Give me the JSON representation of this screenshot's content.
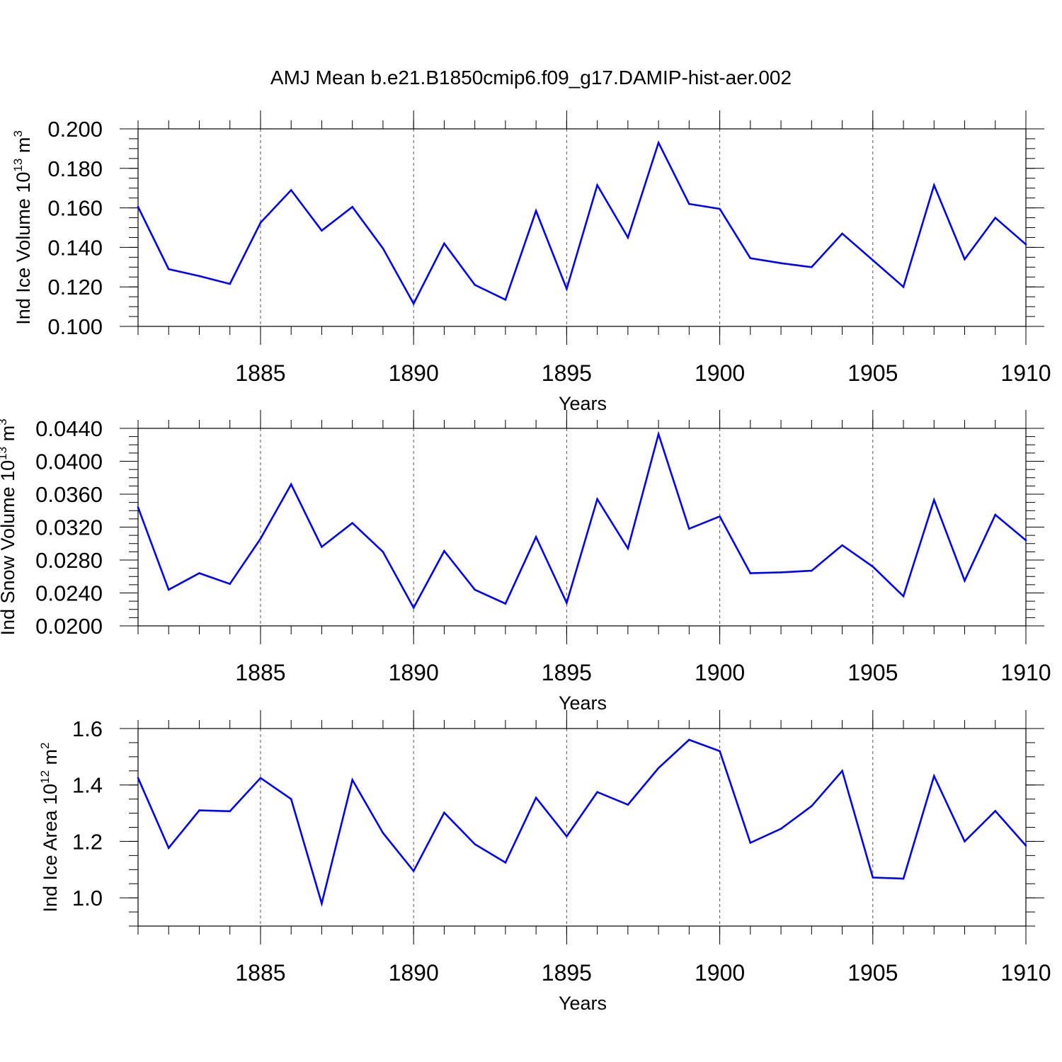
{
  "figure": {
    "title": "AMJ Mean b.e21.B1850cmip6.f09_g17.DAMIP-hist-aer.002",
    "line_color": "#0000ff",
    "grid_color": "#555555"
  },
  "chart_data": [
    {
      "type": "line",
      "ylabel": "Ind Ice Volume",
      "unit_base": "10",
      "unit_exp": "13",
      "unit_name": "m",
      "unit_power": "3",
      "xlabel": "Years",
      "xlim": [
        1881,
        1910
      ],
      "ylim": [
        0.1,
        0.2
      ],
      "xticks": [
        1885,
        1890,
        1895,
        1900,
        1905,
        1910
      ],
      "xtick_labels": [
        "1885",
        "1890",
        "1895",
        "1900",
        "1905",
        "1910"
      ],
      "yticks": [
        0.1,
        0.12,
        0.14,
        0.16,
        0.18,
        0.2
      ],
      "ytick_labels": [
        "0.100",
        "0.120",
        "0.140",
        "0.160",
        "0.180",
        "0.200"
      ],
      "yminor_step": 0.005,
      "x": [
        1881,
        1882,
        1883,
        1884,
        1885,
        1886,
        1887,
        1888,
        1889,
        1890,
        1891,
        1892,
        1893,
        1894,
        1895,
        1896,
        1897,
        1898,
        1899,
        1900,
        1901,
        1902,
        1903,
        1904,
        1905,
        1906,
        1907,
        1908,
        1909,
        1910
      ],
      "values": [
        0.1605,
        0.129,
        0.1255,
        0.1215,
        0.1525,
        0.169,
        0.1485,
        0.1605,
        0.1395,
        0.1115,
        0.142,
        0.121,
        0.1135,
        0.1585,
        0.119,
        0.1715,
        0.145,
        0.193,
        0.162,
        0.1595,
        0.1345,
        0.132,
        0.13,
        0.147,
        0.1335,
        0.12,
        0.1715,
        0.134,
        0.155,
        0.1415
      ]
    },
    {
      "type": "line",
      "ylabel": "Ind Snow Volume",
      "unit_base": "10",
      "unit_exp": "13",
      "unit_name": "m",
      "unit_power": "3",
      "xlabel": "Years",
      "xlim": [
        1881,
        1910
      ],
      "ylim": [
        0.02,
        0.044
      ],
      "xticks": [
        1885,
        1890,
        1895,
        1900,
        1905,
        1910
      ],
      "xtick_labels": [
        "1885",
        "1890",
        "1895",
        "1900",
        "1905",
        "1910"
      ],
      "yticks": [
        0.02,
        0.024,
        0.028,
        0.032,
        0.036,
        0.04,
        0.044
      ],
      "ytick_labels": [
        "0.0200",
        "0.0240",
        "0.0280",
        "0.0320",
        "0.0360",
        "0.0400",
        "0.0440"
      ],
      "yminor_step": 0.001,
      "x": [
        1881,
        1882,
        1883,
        1884,
        1885,
        1886,
        1887,
        1888,
        1889,
        1890,
        1891,
        1892,
        1893,
        1894,
        1895,
        1896,
        1897,
        1898,
        1899,
        1900,
        1901,
        1902,
        1903,
        1904,
        1905,
        1906,
        1907,
        1908,
        1909,
        1910
      ],
      "values": [
        0.0344,
        0.0244,
        0.0264,
        0.0251,
        0.0306,
        0.0372,
        0.0296,
        0.0325,
        0.029,
        0.0222,
        0.0291,
        0.0244,
        0.0227,
        0.0308,
        0.0228,
        0.0354,
        0.0294,
        0.0433,
        0.0318,
        0.0333,
        0.0264,
        0.0265,
        0.0267,
        0.0298,
        0.0272,
        0.0236,
        0.0353,
        0.0255,
        0.0335,
        0.0304
      ]
    },
    {
      "type": "line",
      "ylabel": "Ind Ice Area",
      "unit_base": "10",
      "unit_exp": "12",
      "unit_name": "m",
      "unit_power": "2",
      "xlabel": "Years",
      "xlim": [
        1881,
        1910
      ],
      "ylim": [
        0.9,
        1.6
      ],
      "xticks": [
        1885,
        1890,
        1895,
        1900,
        1905,
        1910
      ],
      "xtick_labels": [
        "1885",
        "1890",
        "1895",
        "1900",
        "1905",
        "1910"
      ],
      "yticks": [
        1.0,
        1.2,
        1.4,
        1.6
      ],
      "ytick_labels": [
        "1.0",
        "1.2",
        "1.4",
        "1.6"
      ],
      "yminor_step": 0.05,
      "x": [
        1881,
        1882,
        1883,
        1884,
        1885,
        1886,
        1887,
        1888,
        1889,
        1890,
        1891,
        1892,
        1893,
        1894,
        1895,
        1896,
        1897,
        1898,
        1899,
        1900,
        1901,
        1902,
        1903,
        1904,
        1905,
        1906,
        1907,
        1908,
        1909,
        1910
      ],
      "values": [
        1.425,
        1.177,
        1.31,
        1.307,
        1.425,
        1.35,
        0.98,
        1.418,
        1.23,
        1.095,
        1.302,
        1.19,
        1.125,
        1.355,
        1.218,
        1.375,
        1.33,
        1.46,
        1.56,
        1.52,
        1.195,
        1.245,
        1.325,
        1.45,
        1.072,
        1.068,
        1.432,
        1.2,
        1.308,
        1.185
      ]
    }
  ]
}
